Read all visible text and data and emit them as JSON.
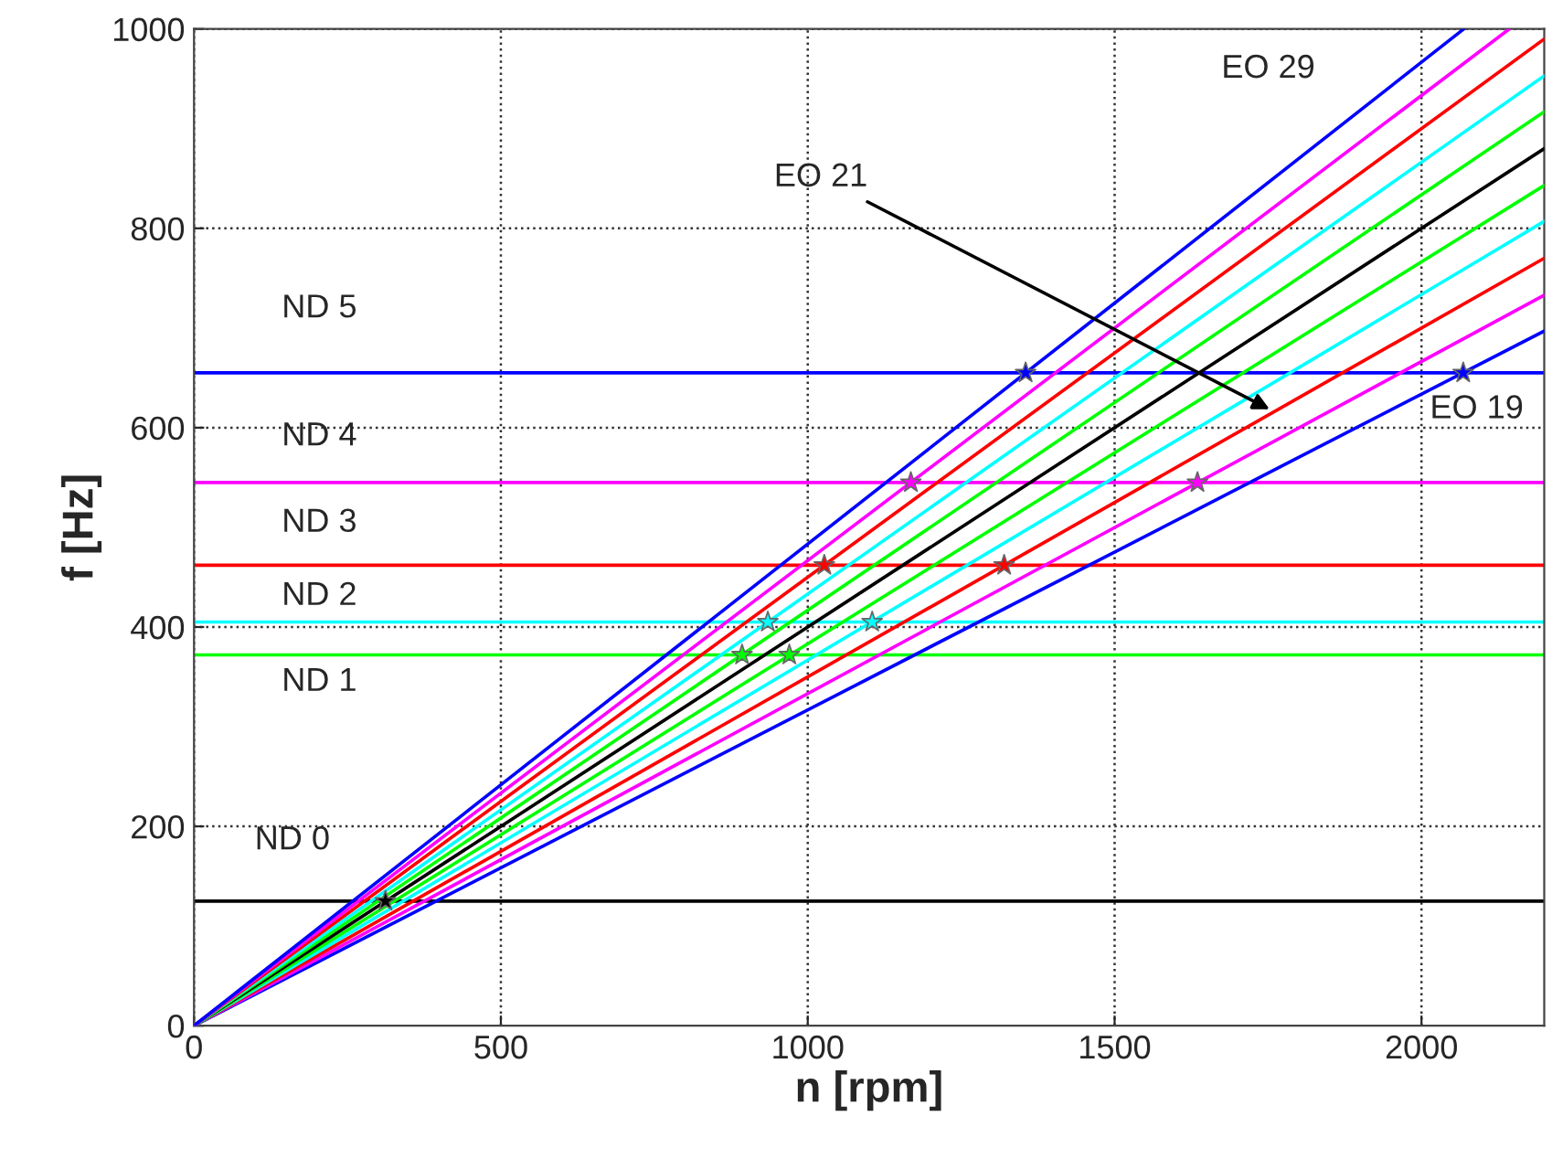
{
  "chart_data": {
    "type": "line",
    "xlabel": "n [rpm]",
    "ylabel": "f [Hz]",
    "xlim": [
      0,
      2200
    ],
    "ylim": [
      0,
      1000
    ],
    "xticks": [
      0,
      500,
      1000,
      1500,
      2000
    ],
    "yticks": [
      0,
      200,
      400,
      600,
      800,
      1000
    ],
    "grid": true,
    "legend": false,
    "series": [
      {
        "name": "EO 19",
        "color": "#0000ff",
        "x": [
          0,
          2200
        ],
        "values": [
          0,
          697
        ]
      },
      {
        "color": "#ff00ff",
        "x": [
          0,
          2200
        ],
        "values": [
          0,
          733
        ]
      },
      {
        "name": "EO 21",
        "color": "#ff0000",
        "x": [
          0,
          2200
        ],
        "values": [
          0,
          770
        ]
      },
      {
        "color": "#00ffff",
        "x": [
          0,
          2200
        ],
        "values": [
          0,
          807
        ]
      },
      {
        "color": "#00ff00",
        "x": [
          0,
          2200
        ],
        "values": [
          0,
          843
        ]
      },
      {
        "color": "#000000",
        "x": [
          0,
          2200
        ],
        "values": [
          0,
          880
        ]
      },
      {
        "color": "#00ff00",
        "x": [
          0,
          2200
        ],
        "values": [
          0,
          917
        ]
      },
      {
        "color": "#00ffff",
        "x": [
          0,
          2200
        ],
        "values": [
          0,
          953
        ]
      },
      {
        "color": "#ff0000",
        "x": [
          0,
          2200
        ],
        "values": [
          0,
          990
        ]
      },
      {
        "color": "#ff00ff",
        "x": [
          0,
          2143
        ],
        "values": [
          0,
          1000
        ]
      },
      {
        "name": "EO 29",
        "color": "#0000ff",
        "x": [
          0,
          2069
        ],
        "values": [
          0,
          1000
        ]
      },
      {
        "type": "scatter",
        "marker": "star",
        "color": "#000000",
        "x": [
          312
        ],
        "values": [
          125
        ]
      },
      {
        "type": "scatter",
        "marker": "star",
        "color": "#00ff00",
        "x": [
          893,
          970
        ],
        "values": [
          372,
          372
        ]
      },
      {
        "type": "scatter",
        "marker": "star",
        "color": "#00ffff",
        "x": [
          935,
          1105
        ],
        "values": [
          405,
          405
        ]
      },
      {
        "type": "scatter",
        "marker": "star",
        "color": "#ff0000",
        "x": [
          1027,
          1320
        ],
        "values": [
          462,
          462
        ]
      },
      {
        "type": "scatter",
        "marker": "star",
        "color": "#ff00ff",
        "x": [
          1168,
          1635
        ],
        "values": [
          545,
          545
        ]
      },
      {
        "type": "scatter",
        "marker": "star",
        "color": "#0000ff",
        "x": [
          1355,
          2068
        ],
        "values": [
          655,
          655
        ]
      }
    ],
    "ref_lines": [
      {
        "axis": "y",
        "value": 125,
        "color": "#000000",
        "label": "ND 0"
      },
      {
        "axis": "y",
        "value": 372,
        "color": "#00ff00",
        "label": "ND 1"
      },
      {
        "axis": "y",
        "value": 405,
        "color": "#00ffff",
        "label": "ND 2"
      },
      {
        "axis": "y",
        "value": 462,
        "color": "#ff0000",
        "label": "ND 3"
      },
      {
        "axis": "y",
        "value": 545,
        "color": "#ff00ff",
        "label": "ND 4"
      },
      {
        "axis": "y",
        "value": 655,
        "color": "#0000ff",
        "label": "ND 5"
      }
    ]
  }
}
